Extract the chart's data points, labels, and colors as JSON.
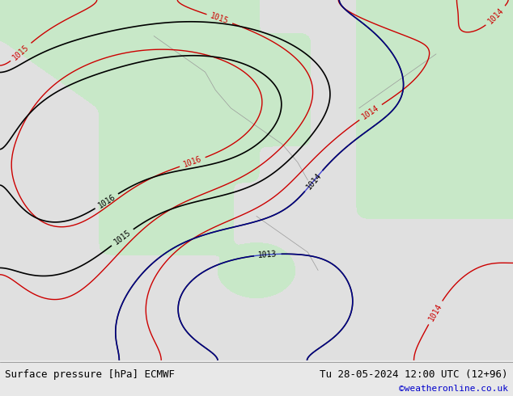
{
  "title_left": "Surface pressure [hPa] ECMWF",
  "title_right": "Tu 28-05-2024 12:00 UTC (12+96)",
  "watermark": "©weatheronline.co.uk",
  "bg_color": "#e8e8e8",
  "land_color": "#c8e8c8",
  "sea_color": "#e0e0e0",
  "contour_color_black": "#000000",
  "contour_color_red": "#cc0000",
  "contour_color_blue": "#0000cc",
  "label_fontsize": 7,
  "footer_fontsize": 9,
  "watermark_fontsize": 8,
  "figsize": [
    6.34,
    4.9
  ],
  "dpi": 100
}
